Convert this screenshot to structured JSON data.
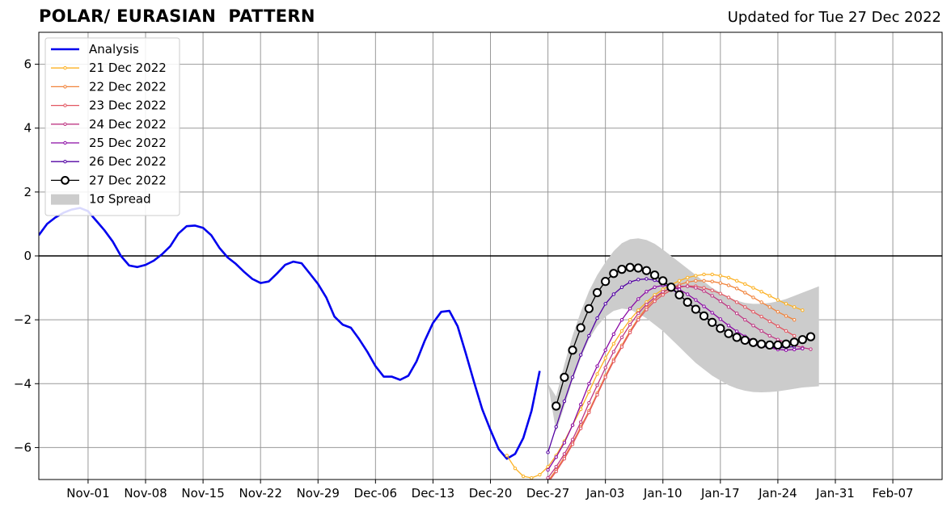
{
  "header": {
    "title": "POLAR/ EURASIAN  PATTERN",
    "updated": "Updated for Tue 27 Dec 2022"
  },
  "chart_data": {
    "type": "line",
    "title": "POLAR/ EURASIAN  PATTERN",
    "xlabel": "",
    "ylabel": "",
    "x_range": [
      "2022-10-26",
      "2023-02-13"
    ],
    "ylim": [
      -7,
      7
    ],
    "grid": true,
    "legend_position": "top-left",
    "x_ticks": [
      {
        "date": "2022-11-01",
        "label": "Nov-01"
      },
      {
        "date": "2022-11-08",
        "label": "Nov-08"
      },
      {
        "date": "2022-11-15",
        "label": "Nov-15"
      },
      {
        "date": "2022-11-22",
        "label": "Nov-22"
      },
      {
        "date": "2022-11-29",
        "label": "Nov-29"
      },
      {
        "date": "2022-12-06",
        "label": "Dec-06"
      },
      {
        "date": "2022-12-13",
        "label": "Dec-13"
      },
      {
        "date": "2022-12-20",
        "label": "Dec-20"
      },
      {
        "date": "2022-12-27",
        "label": "Dec-27"
      },
      {
        "date": "2023-01-03",
        "label": "Jan-03"
      },
      {
        "date": "2023-01-10",
        "label": "Jan-10"
      },
      {
        "date": "2023-01-17",
        "label": "Jan-17"
      },
      {
        "date": "2023-01-24",
        "label": "Jan-24"
      },
      {
        "date": "2023-01-31",
        "label": "Jan-31"
      },
      {
        "date": "2023-02-07",
        "label": "Feb-07"
      }
    ],
    "y_ticks": [
      {
        "value": 6,
        "label": "6"
      },
      {
        "value": 4,
        "label": "4"
      },
      {
        "value": 2,
        "label": "2"
      },
      {
        "value": 0,
        "label": "0"
      },
      {
        "value": -2,
        "label": "−2"
      },
      {
        "value": -4,
        "label": "−4"
      },
      {
        "value": -6,
        "label": "−6"
      }
    ],
    "analysis": {
      "name": "Analysis",
      "color": "#0000ee",
      "start_date": "2022-10-26",
      "values": [
        0.65,
        1.0,
        1.2,
        1.35,
        1.45,
        1.5,
        1.4,
        1.1,
        0.8,
        0.45,
        0.0,
        -0.3,
        -0.35,
        -0.28,
        -0.15,
        0.05,
        0.3,
        0.7,
        0.93,
        0.95,
        0.88,
        0.65,
        0.25,
        -0.05,
        -0.25,
        -0.5,
        -0.72,
        -0.85,
        -0.8,
        -0.55,
        -0.28,
        -0.18,
        -0.23,
        -0.55,
        -0.88,
        -1.3,
        -1.9,
        -2.15,
        -2.25,
        -2.6,
        -3.0,
        -3.45,
        -3.78,
        -3.78,
        -3.88,
        -3.75,
        -3.3,
        -2.65,
        -2.1,
        -1.75,
        -1.72,
        -2.2,
        -3.05,
        -3.95,
        -4.8,
        -5.45,
        -6.05,
        -6.35,
        -6.2,
        -5.7,
        -4.85,
        -3.6
      ]
    },
    "spread": {
      "name": "1σ Spread",
      "color": "#cccccc",
      "dates": [
        "2022-12-27",
        "2022-12-28",
        "2022-12-29",
        "2022-12-30",
        "2022-12-31",
        "2023-01-01",
        "2023-01-02",
        "2023-01-03",
        "2023-01-04",
        "2023-01-05",
        "2023-01-06",
        "2023-01-07",
        "2023-01-08",
        "2023-01-09",
        "2023-01-10",
        "2023-01-11",
        "2023-01-12",
        "2023-01-13",
        "2023-01-14",
        "2023-01-15",
        "2023-01-16",
        "2023-01-17",
        "2023-01-18",
        "2023-01-19",
        "2023-01-20",
        "2023-01-21",
        "2023-01-22",
        "2023-01-23",
        "2023-01-24",
        "2023-01-25",
        "2023-01-26",
        "2023-01-27",
        "2023-01-28",
        "2023-01-29"
      ],
      "upper": [
        -4.0,
        -4.4,
        -3.4,
        -2.5,
        -1.75,
        -1.1,
        -0.6,
        -0.2,
        0.15,
        0.4,
        0.52,
        0.55,
        0.5,
        0.38,
        0.2,
        0.0,
        -0.2,
        -0.4,
        -0.6,
        -0.8,
        -1.0,
        -1.15,
        -1.3,
        -1.4,
        -1.47,
        -1.5,
        -1.5,
        -1.47,
        -1.42,
        -1.35,
        -1.25,
        -1.15,
        -1.05,
        -0.95
      ],
      "lower": [
        -4.0,
        -5.5,
        -4.7,
        -3.9,
        -3.2,
        -2.6,
        -2.2,
        -1.9,
        -1.72,
        -1.65,
        -1.68,
        -1.8,
        -1.95,
        -2.15,
        -2.35,
        -2.6,
        -2.85,
        -3.1,
        -3.35,
        -3.55,
        -3.75,
        -3.9,
        -4.05,
        -4.15,
        -4.22,
        -4.26,
        -4.27,
        -4.26,
        -4.24,
        -4.2,
        -4.16,
        -4.12,
        -4.1,
        -4.08
      ]
    },
    "series": [
      {
        "name": "21 Dec 2022",
        "color": "#fcb122",
        "start_date": "2022-12-22",
        "values": [
          -6.25,
          -6.65,
          -6.9,
          -6.95,
          -6.85,
          -6.6,
          -6.25,
          -5.8,
          -5.3,
          -4.8,
          -4.25,
          -3.7,
          -3.2,
          -2.75,
          -2.35,
          -2.0,
          -1.7,
          -1.45,
          -1.22,
          -1.05,
          -0.9,
          -0.78,
          -0.68,
          -0.62,
          -0.58,
          -0.58,
          -0.62,
          -0.68,
          -0.78,
          -0.88,
          -1.0,
          -1.12,
          -1.25,
          -1.38,
          -1.5,
          -1.6,
          -1.7
        ]
      },
      {
        "name": "22 Dec 2022",
        "color": "#f1833b",
        "start_date": "2022-12-27",
        "values": [
          -7.05,
          -6.7,
          -6.3,
          -5.85,
          -5.35,
          -4.85,
          -4.3,
          -3.75,
          -3.25,
          -2.8,
          -2.35,
          -1.95,
          -1.62,
          -1.35,
          -1.15,
          -1.0,
          -0.9,
          -0.82,
          -0.78,
          -0.78,
          -0.8,
          -0.85,
          -0.92,
          -1.02,
          -1.15,
          -1.3,
          -1.45,
          -1.6,
          -1.75,
          -1.88,
          -2.0
        ]
      },
      {
        "name": "23 Dec 2022",
        "color": "#e25762",
        "start_date": "2022-12-27",
        "values": [
          -7.1,
          -6.75,
          -6.35,
          -5.9,
          -5.4,
          -4.9,
          -4.35,
          -3.8,
          -3.3,
          -2.85,
          -2.4,
          -2.0,
          -1.68,
          -1.42,
          -1.22,
          -1.07,
          -0.98,
          -0.94,
          -0.95,
          -1.0,
          -1.08,
          -1.18,
          -1.3,
          -1.45,
          -1.6,
          -1.75,
          -1.9,
          -2.05,
          -2.2,
          -2.35,
          -2.5
        ]
      },
      {
        "name": "24 Dec 2022",
        "color": "#bf3984",
        "start_date": "2022-12-27",
        "values": [
          -6.95,
          -6.6,
          -6.2,
          -5.75,
          -5.2,
          -4.6,
          -4.05,
          -3.5,
          -3.0,
          -2.55,
          -2.15,
          -1.8,
          -1.52,
          -1.3,
          -1.12,
          -1.0,
          -0.95,
          -0.95,
          -1.0,
          -1.1,
          -1.25,
          -1.42,
          -1.6,
          -1.8,
          -2.0,
          -2.18,
          -2.35,
          -2.5,
          -2.62,
          -2.72,
          -2.8,
          -2.87,
          -2.92
        ]
      },
      {
        "name": "25 Dec 2022",
        "color": "#8b0aa5",
        "start_date": "2022-12-27",
        "values": [
          -6.7,
          -6.3,
          -5.85,
          -5.3,
          -4.65,
          -4.0,
          -3.45,
          -2.95,
          -2.45,
          -2.0,
          -1.65,
          -1.35,
          -1.12,
          -0.98,
          -0.92,
          -0.95,
          -1.05,
          -1.2,
          -1.38,
          -1.58,
          -1.78,
          -1.98,
          -2.18,
          -2.36,
          -2.52,
          -2.66,
          -2.78,
          -2.87,
          -2.93,
          -2.95,
          -2.93,
          -2.9
        ]
      },
      {
        "name": "26 Dec 2022",
        "color": "#5302a3",
        "start_date": "2022-12-27",
        "values": [
          -6.15,
          -5.35,
          -4.55,
          -3.8,
          -3.1,
          -2.5,
          -1.95,
          -1.5,
          -1.2,
          -0.98,
          -0.82,
          -0.74,
          -0.72,
          -0.76,
          -0.86,
          -1.02,
          -1.22,
          -1.44,
          -1.66,
          -1.88,
          -2.08,
          -2.26,
          -2.42,
          -2.56,
          -2.68,
          -2.77,
          -2.83,
          -2.86,
          -2.87,
          -2.86,
          -2.84
        ]
      },
      {
        "name": "27 Dec 2022",
        "color": "#000000",
        "start_date": "2022-12-28",
        "values": [
          -4.7,
          -3.8,
          -2.95,
          -2.25,
          -1.65,
          -1.15,
          -0.8,
          -0.55,
          -0.42,
          -0.36,
          -0.38,
          -0.46,
          -0.6,
          -0.78,
          -0.98,
          -1.22,
          -1.45,
          -1.67,
          -1.88,
          -2.08,
          -2.27,
          -2.43,
          -2.55,
          -2.64,
          -2.71,
          -2.76,
          -2.79,
          -2.79,
          -2.76,
          -2.7,
          -2.62,
          -2.53
        ]
      }
    ]
  }
}
